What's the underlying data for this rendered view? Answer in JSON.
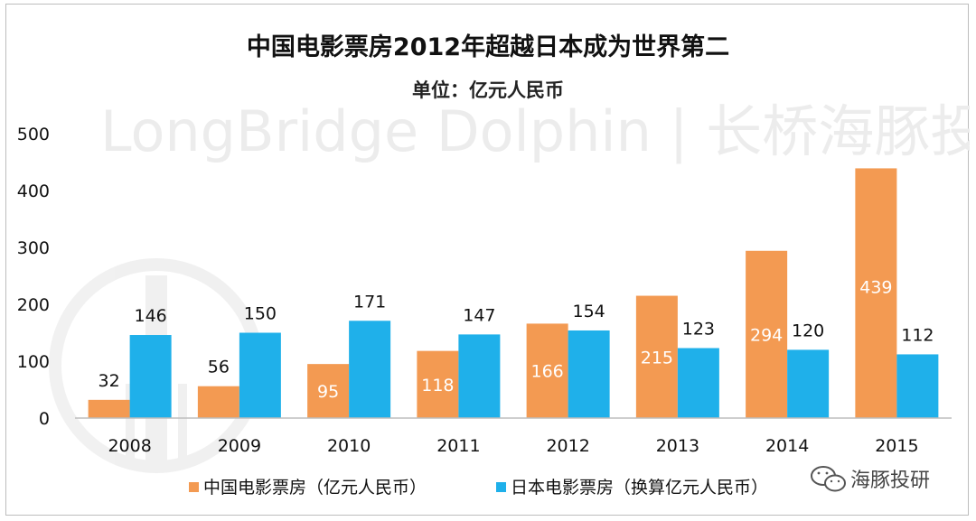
{
  "chart_data": {
    "type": "bar",
    "title": "中国电影票房2012年超越日本成为世界第二",
    "subtitle": "单位：亿元人民币",
    "categories": [
      "2008",
      "2009",
      "2010",
      "2011",
      "2012",
      "2013",
      "2014",
      "2015"
    ],
    "series": [
      {
        "name": "中国电影票房（亿元人民币）",
        "color": "#F39A52",
        "values": [
          32,
          56,
          95,
          118,
          166,
          215,
          294,
          439
        ]
      },
      {
        "name": "日本电影票房（换算亿元人民币）",
        "color": "#1FB0EA",
        "values": [
          146,
          150,
          171,
          147,
          154,
          123,
          120,
          112
        ]
      }
    ],
    "ylim": [
      0,
      500
    ],
    "yticks": [
      0,
      100,
      200,
      300,
      400,
      500
    ],
    "xlabel": "",
    "ylabel": "",
    "grid": false,
    "legend_position": "bottom"
  },
  "watermark": {
    "text": "LongBridge Dolphin | 长桥海豚投研"
  },
  "brand": {
    "text": "海豚投研",
    "icon": "wechat-icon"
  }
}
